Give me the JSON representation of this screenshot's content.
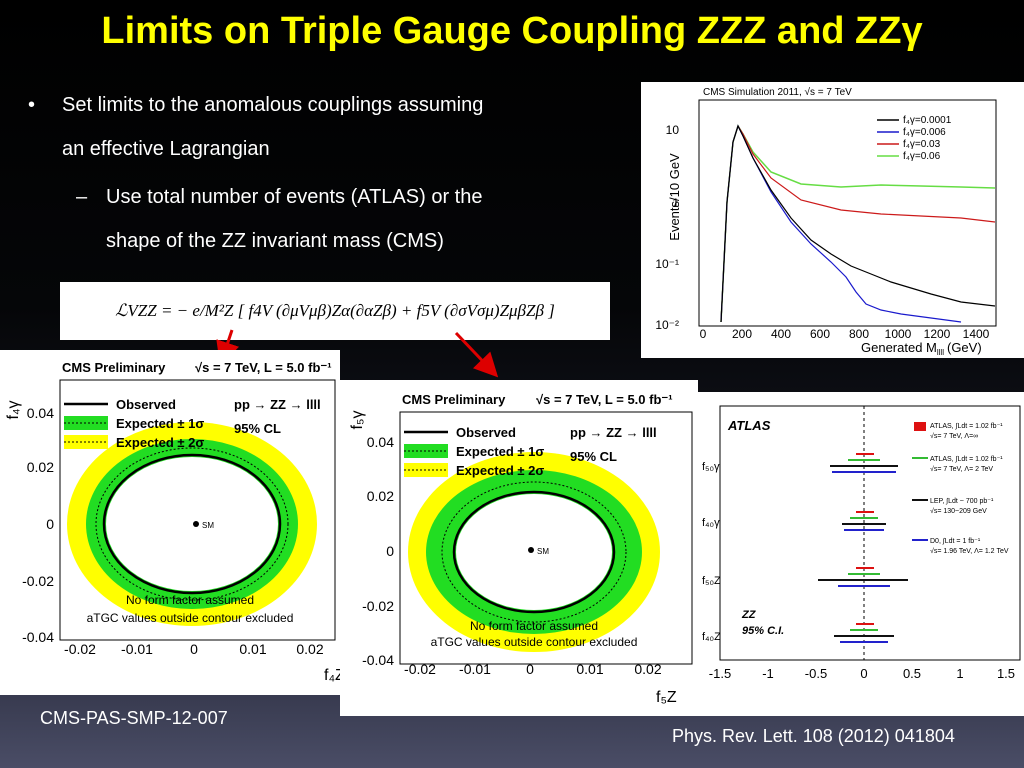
{
  "slide": {
    "title": "Limits on Triple Gauge Coupling ZZZ and ZZγ",
    "bullet1_marker": "•",
    "bullet1_line1": "Set limits to the anomalous couplings assuming",
    "bullet1_line2": "an effective Lagrangian",
    "sub_marker": "–",
    "sub_line1": "Use total number of events (ATLAS) or the",
    "sub_line2": "shape of the ZZ invariant mass (CMS)",
    "formula": "ℒVZZ = − e/M²Z [ f4V (∂μVμβ)Zα(∂αZβ) + f5V (∂σVσμ)ZμβZβ ]",
    "ref_cms": "CMS-PAS-SMP-12-007",
    "ref_atlas": "Phys. Rev. Lett. 108 (2012) 041804"
  },
  "mass_plot": {
    "header": "CMS Simulation 2011, √s = 7 TeV",
    "ylabel": "Events/10 GeV",
    "xlabel": "Generated M",
    "xlabel_sub": "llll",
    "xlabel_unit": "(GeV)",
    "yticks": [
      "10",
      "1",
      "10⁻¹",
      "10⁻²"
    ],
    "xticks": [
      "0",
      "200",
      "400",
      "600",
      "800",
      "1000",
      "1200",
      "1400"
    ],
    "legend": [
      {
        "label": "f₄γ=0.0001",
        "color": "#000000"
      },
      {
        "label": "f₄γ=0.006",
        "color": "#1a1acc"
      },
      {
        "label": "f₄γ=0.03",
        "color": "#cc1a1a"
      },
      {
        "label": "f₄γ=0.06",
        "color": "#66dd44"
      }
    ]
  },
  "cms_f4": {
    "header_left": "CMS Preliminary",
    "header_right": "√s = 7 TeV, L = 5.0 fb⁻¹",
    "ylabel": "f₄γ",
    "xlabel": "f₄Z",
    "legend": [
      "Observed",
      "Expected ± 1σ",
      "Expected ± 2σ"
    ],
    "process": "pp → ZZ → llll",
    "cl": "95% CL",
    "sm": "SM",
    "note1": "No form factor assumed",
    "note2": "aTGC values outside contour excluded",
    "yticks": [
      "0.04",
      "0.02",
      "0",
      "-0.02",
      "-0.04"
    ],
    "xticks": [
      "-0.02",
      "-0.01",
      "0",
      "0.01",
      "0.02"
    ]
  },
  "cms_f5": {
    "header_left": "CMS Preliminary",
    "header_right": "√s = 7 TeV, L = 5.0 fb⁻¹",
    "ylabel": "f₅γ",
    "xlabel": "f₅Z",
    "legend": [
      "Observed",
      "Expected ± 1σ",
      "Expected ± 2σ"
    ],
    "process": "pp → ZZ → llll",
    "cl": "95% CL",
    "sm": "SM",
    "note1": "No form factor assumed",
    "note2": "aTGC values outside contour excluded",
    "yticks": [
      "0.04",
      "0.02",
      "0",
      "-0.02",
      "-0.04"
    ],
    "xticks": [
      "-0.02",
      "-0.01",
      "0",
      "0.01",
      "0.02"
    ]
  },
  "atlas_plot": {
    "brand": "ATLAS",
    "label1": "ZZ",
    "label2": "95% C.I.",
    "rows": [
      "f₅₀γ",
      "f₄₀γ",
      "f₅₀Z",
      "f₄₀Z"
    ],
    "xticks": [
      "-1.5",
      "-1",
      "-0.5",
      "0",
      "0.5",
      "1",
      "1.5"
    ],
    "legend": [
      {
        "text": "ATLAS, ∫Ldt = 1.02 fb⁻¹",
        "sub": "√s= 7 TeV, Λ=∞",
        "color": "#dd1111"
      },
      {
        "text": "ATLAS, ∫Ldt = 1.02 fb⁻¹",
        "sub": "√s= 7 TeV, Λ= 2 TeV",
        "color": "#33bb33"
      },
      {
        "text": "LEP, ∫Ldt ~ 700 pb⁻¹",
        "sub": "√s= 130~209 GeV",
        "color": "#111111"
      },
      {
        "text": "D0, ∫Ldt = 1 fb⁻¹",
        "sub": "√s= 1.96 TeV, Λ= 1.2 TeV",
        "color": "#2222cc"
      }
    ]
  },
  "colors": {
    "title": "#ffff00",
    "green_band": "#22dd22",
    "yellow_band": "#ffff00"
  }
}
